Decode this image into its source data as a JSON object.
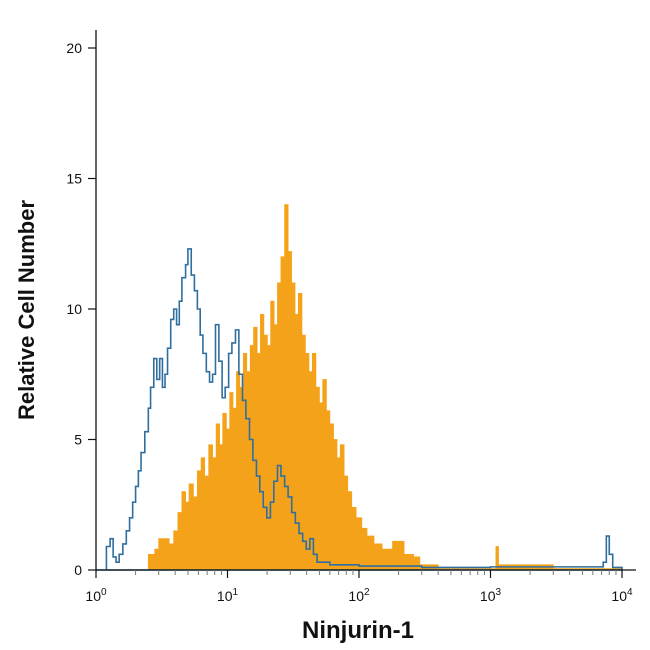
{
  "chart_data": {
    "type": "histogram",
    "title": "",
    "xlabel": "Ninjurin-1",
    "ylabel": "Relative Cell Number",
    "x_scale": "log",
    "xlim": [
      1,
      10000
    ],
    "ylim": [
      0,
      20
    ],
    "grid": false,
    "x_tick_labels": [
      {
        "base": "10",
        "exp": "0",
        "value": 1
      },
      {
        "base": "10",
        "exp": "1",
        "value": 10
      },
      {
        "base": "10",
        "exp": "2",
        "value": 100
      },
      {
        "base": "10",
        "exp": "3",
        "value": 1000
      },
      {
        "base": "10",
        "exp": "4",
        "value": 10000
      }
    ],
    "y_tick_labels": [
      {
        "label": "0",
        "value": 0
      },
      {
        "label": "5",
        "value": 5
      },
      {
        "label": "10",
        "value": 10
      },
      {
        "label": "15",
        "value": 15
      },
      {
        "label": "20",
        "value": 20
      }
    ],
    "series": [
      {
        "style": "outline",
        "color": "#2f6f9f",
        "points": [
          [
            1.0,
            0
          ],
          [
            1.05,
            0
          ],
          [
            1.12,
            0
          ],
          [
            1.2,
            0.9
          ],
          [
            1.28,
            1.2
          ],
          [
            1.35,
            0.5
          ],
          [
            1.42,
            0.3
          ],
          [
            1.5,
            0.6
          ],
          [
            1.6,
            1.0
          ],
          [
            1.7,
            1.5
          ],
          [
            1.8,
            2.0
          ],
          [
            1.9,
            2.6
          ],
          [
            2.0,
            3.2
          ],
          [
            2.1,
            3.8
          ],
          [
            2.2,
            4.5
          ],
          [
            2.35,
            5.3
          ],
          [
            2.5,
            6.2
          ],
          [
            2.6,
            7.0
          ],
          [
            2.75,
            8.1
          ],
          [
            2.9,
            7.3
          ],
          [
            3.05,
            8.1
          ],
          [
            3.2,
            7.0
          ],
          [
            3.35,
            7.5
          ],
          [
            3.5,
            8.5
          ],
          [
            3.7,
            9.6
          ],
          [
            3.9,
            10.0
          ],
          [
            4.1,
            9.4
          ],
          [
            4.3,
            10.3
          ],
          [
            4.5,
            11.2
          ],
          [
            4.8,
            11.7
          ],
          [
            5.0,
            12.3
          ],
          [
            5.3,
            11.3
          ],
          [
            5.6,
            10.7
          ],
          [
            5.9,
            10.0
          ],
          [
            6.2,
            9.0
          ],
          [
            6.5,
            8.3
          ],
          [
            6.9,
            7.6
          ],
          [
            7.3,
            7.2
          ],
          [
            7.7,
            7.5
          ],
          [
            8.1,
            9.4
          ],
          [
            8.6,
            8.0
          ],
          [
            9.1,
            6.6
          ],
          [
            9.6,
            7.0
          ],
          [
            10.2,
            8.3
          ],
          [
            10.8,
            8.7
          ],
          [
            11.5,
            9.2
          ],
          [
            12.2,
            7.5
          ],
          [
            13.0,
            6.5
          ],
          [
            13.8,
            5.8
          ],
          [
            14.7,
            5.0
          ],
          [
            15.6,
            4.2
          ],
          [
            16.6,
            3.6
          ],
          [
            17.6,
            3.0
          ],
          [
            18.7,
            2.4
          ],
          [
            19.9,
            2.0
          ],
          [
            21.2,
            2.6
          ],
          [
            22.5,
            3.4
          ],
          [
            24.0,
            4.0
          ],
          [
            25.5,
            3.6
          ],
          [
            27.2,
            3.2
          ],
          [
            28.9,
            2.8
          ],
          [
            30.8,
            2.2
          ],
          [
            32.8,
            1.8
          ],
          [
            35.0,
            1.4
          ],
          [
            37.3,
            1.1
          ],
          [
            39.7,
            0.8
          ],
          [
            42.3,
            1.2
          ],
          [
            45.0,
            0.6
          ],
          [
            48.0,
            0.3
          ],
          [
            60.0,
            0.2
          ],
          [
            100,
            0.15
          ],
          [
            300,
            0.1
          ],
          [
            1000,
            0.12
          ],
          [
            5000,
            0.12
          ],
          [
            7200,
            0.3
          ],
          [
            7600,
            1.3
          ],
          [
            8000,
            0.6
          ],
          [
            8500,
            0.1
          ],
          [
            10000,
            0.05
          ]
        ]
      },
      {
        "style": "filled",
        "color": "#f5a21b",
        "points": [
          [
            2.3,
            0
          ],
          [
            2.5,
            0.6
          ],
          [
            2.8,
            0.8
          ],
          [
            3.0,
            1.2
          ],
          [
            3.3,
            1.2
          ],
          [
            3.6,
            1.0
          ],
          [
            3.9,
            1.5
          ],
          [
            4.2,
            2.2
          ],
          [
            4.5,
            3.0
          ],
          [
            4.8,
            2.6
          ],
          [
            5.1,
            3.3
          ],
          [
            5.5,
            2.8
          ],
          [
            5.9,
            3.8
          ],
          [
            6.3,
            4.3
          ],
          [
            6.7,
            3.6
          ],
          [
            7.2,
            4.8
          ],
          [
            7.7,
            4.3
          ],
          [
            8.2,
            5.6
          ],
          [
            8.7,
            4.8
          ],
          [
            9.2,
            6.0
          ],
          [
            9.8,
            5.4
          ],
          [
            10.4,
            6.8
          ],
          [
            11.0,
            6.2
          ],
          [
            11.7,
            7.6
          ],
          [
            12.4,
            7.0
          ],
          [
            13.2,
            8.3
          ],
          [
            14.0,
            7.6
          ],
          [
            14.9,
            8.6
          ],
          [
            15.8,
            9.3
          ],
          [
            16.8,
            8.3
          ],
          [
            17.8,
            9.8
          ],
          [
            18.9,
            9.0
          ],
          [
            20.1,
            8.6
          ],
          [
            21.3,
            10.3
          ],
          [
            22.6,
            9.4
          ],
          [
            24.0,
            11.0
          ],
          [
            25.5,
            12.0
          ],
          [
            27.2,
            14.0
          ],
          [
            28.9,
            12.2
          ],
          [
            30.7,
            11.0
          ],
          [
            32.6,
            9.8
          ],
          [
            34.6,
            10.6
          ],
          [
            36.8,
            9.0
          ],
          [
            39.1,
            8.3
          ],
          [
            41.6,
            7.6
          ],
          [
            44.2,
            8.3
          ],
          [
            47.0,
            7.0
          ],
          [
            50.0,
            6.4
          ],
          [
            53.0,
            7.3
          ],
          [
            56.5,
            6.1
          ],
          [
            60.0,
            5.6
          ],
          [
            64.0,
            5.0
          ],
          [
            68.0,
            4.3
          ],
          [
            72.0,
            4.8
          ],
          [
            77.0,
            3.6
          ],
          [
            82.0,
            3.0
          ],
          [
            88.0,
            2.4
          ],
          [
            95.0,
            2.0
          ],
          [
            105.0,
            1.6
          ],
          [
            115.0,
            1.3
          ],
          [
            130.0,
            1.0
          ],
          [
            150.0,
            0.8
          ],
          [
            180.0,
            1.1
          ],
          [
            220.0,
            0.6
          ],
          [
            260.0,
            0.5
          ],
          [
            290.0,
            0.2
          ],
          [
            400.0,
            0.05
          ],
          [
            1000,
            0.05
          ],
          [
            1100,
            0.9
          ],
          [
            1150,
            0.2
          ],
          [
            3000,
            0.05
          ],
          [
            10000,
            0.05
          ]
        ]
      }
    ]
  }
}
